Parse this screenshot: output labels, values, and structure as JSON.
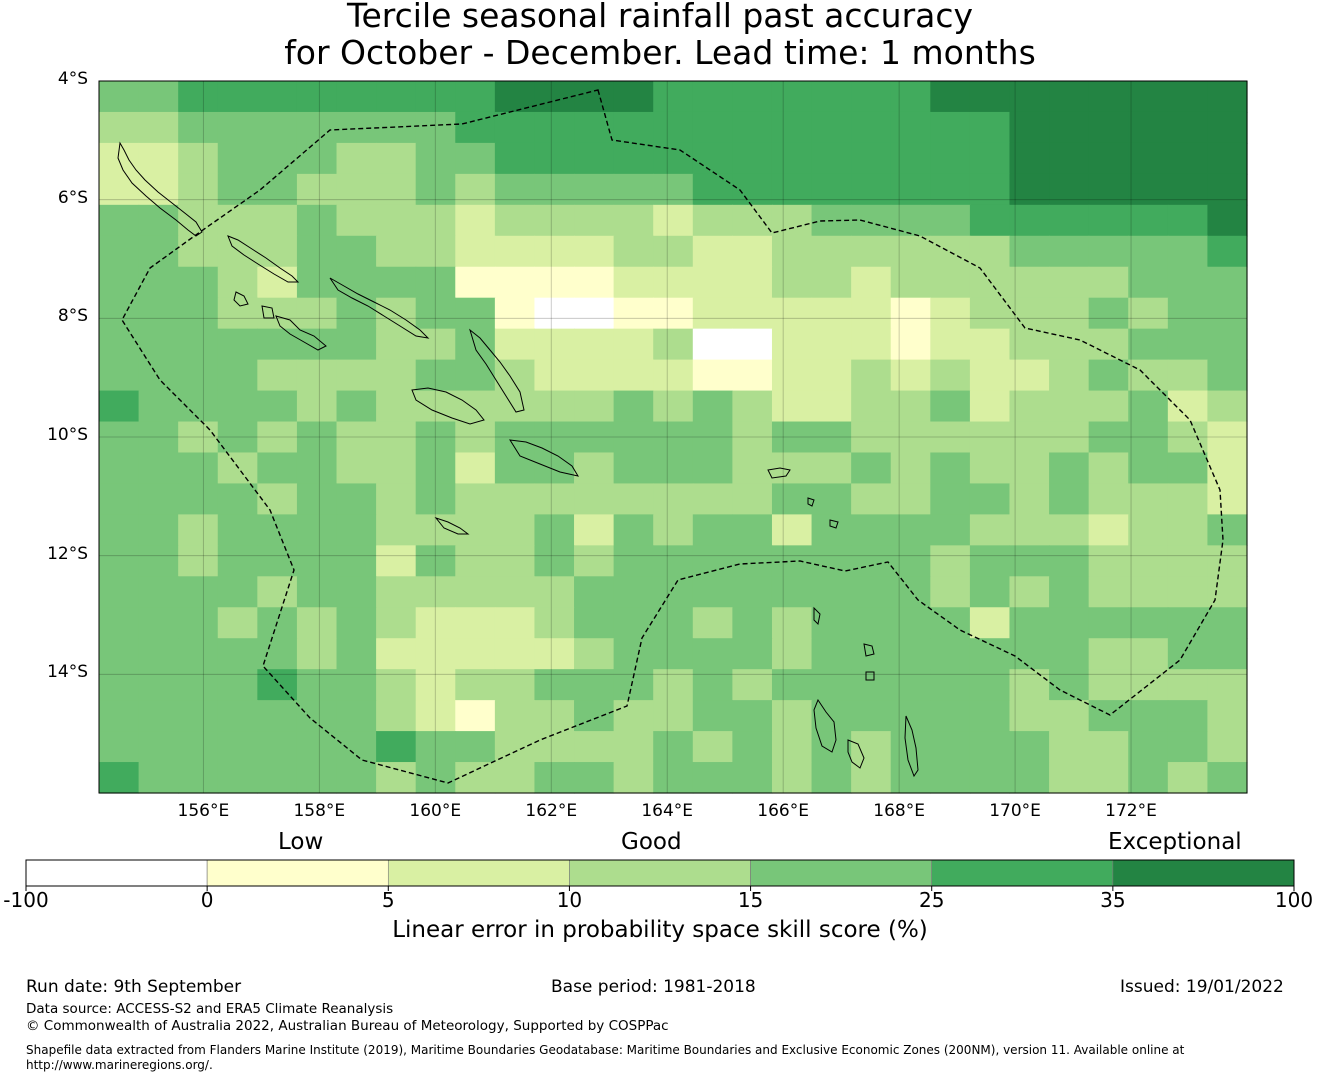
{
  "title_line1": "Tercile seasonal rainfall past accuracy",
  "title_line2": "for October - December. Lead time: 1 months",
  "map": {
    "lon_range": [
      154.2,
      174.0
    ],
    "lat_range": [
      -16.0,
      -4.0
    ],
    "lat_labels": [
      "4°S",
      "6°S",
      "8°S",
      "10°S",
      "12°S",
      "14°S"
    ],
    "lat_values": [
      -4,
      -6,
      -8,
      -10,
      -12,
      -14
    ],
    "lon_labels": [
      "156°E",
      "158°E",
      "160°E",
      "162°E",
      "164°E",
      "166°E",
      "168°E",
      "170°E",
      "172°E"
    ],
    "lon_values": [
      156,
      158,
      160,
      162,
      164,
      166,
      168,
      170,
      172
    ],
    "grid_levels_note": "0=white,1=pale yellow,2=light yellow-green,3=light green,4=green,5=medium green,6=dark green",
    "skill_grid": [
      "44555555556666555555566666666",
      "33444444455555555555555666666",
      "22344433445555555555555666666",
      "22344333434444455555555666666",
      "44333433323333233344445555556",
      "44333443322223322333333444445",
      "44432444411112222332333333444",
      "44433343441001122222123334344",
      "44444443342222300222122333444",
      "44443333443222211223232234334",
      "54444343333334343223342333423",
      "44343433434444443443333334432",
      "44434433424434443334343343442",
      "44443443433333333443344343332",
      "44344443333424344244443332334",
      "44344442433434444444434443333",
      "44443443333344444444434343333",
      "44434343222344434344442444444",
      "44444342222234444344444443344",
      "44445443233444343444444343333",
      "44444443213343344344444334443",
      "44444445443333434343444433443",
      "54444443433443444343444433434"
    ]
  },
  "colorbar": {
    "category_labels": [
      "Low",
      "Good",
      "Exceptional"
    ],
    "tick_labels": [
      "-100",
      "0",
      "5",
      "10",
      "15",
      "25",
      "35",
      "100"
    ],
    "colors": [
      "#ffffff",
      "#ffffcc",
      "#d9f0a3",
      "#addd8e",
      "#78c679",
      "#41ab5d",
      "#238443"
    ],
    "title": "Linear error in probability space skill score (%)"
  },
  "footer": {
    "run_date": "Run date: 9th September",
    "base_period": "Base period: 1981-2018",
    "issued": "Issued: 19/01/2022",
    "data_source": "Data source: ACCESS-S2 and ERA5 Climate Reanalysis",
    "copyright": "© Commonwealth of Australia 2022, Australian Bureau of Meteorology, Supported by COSPPac",
    "shapefile": "Shapefile data extracted from Flanders Marine Institute (2019), Maritime Boundaries Geodatabase: Maritime Boundaries and Exclusive Economic Zones (200NM), version 11. Available online at http://www.marineregions.org/."
  }
}
